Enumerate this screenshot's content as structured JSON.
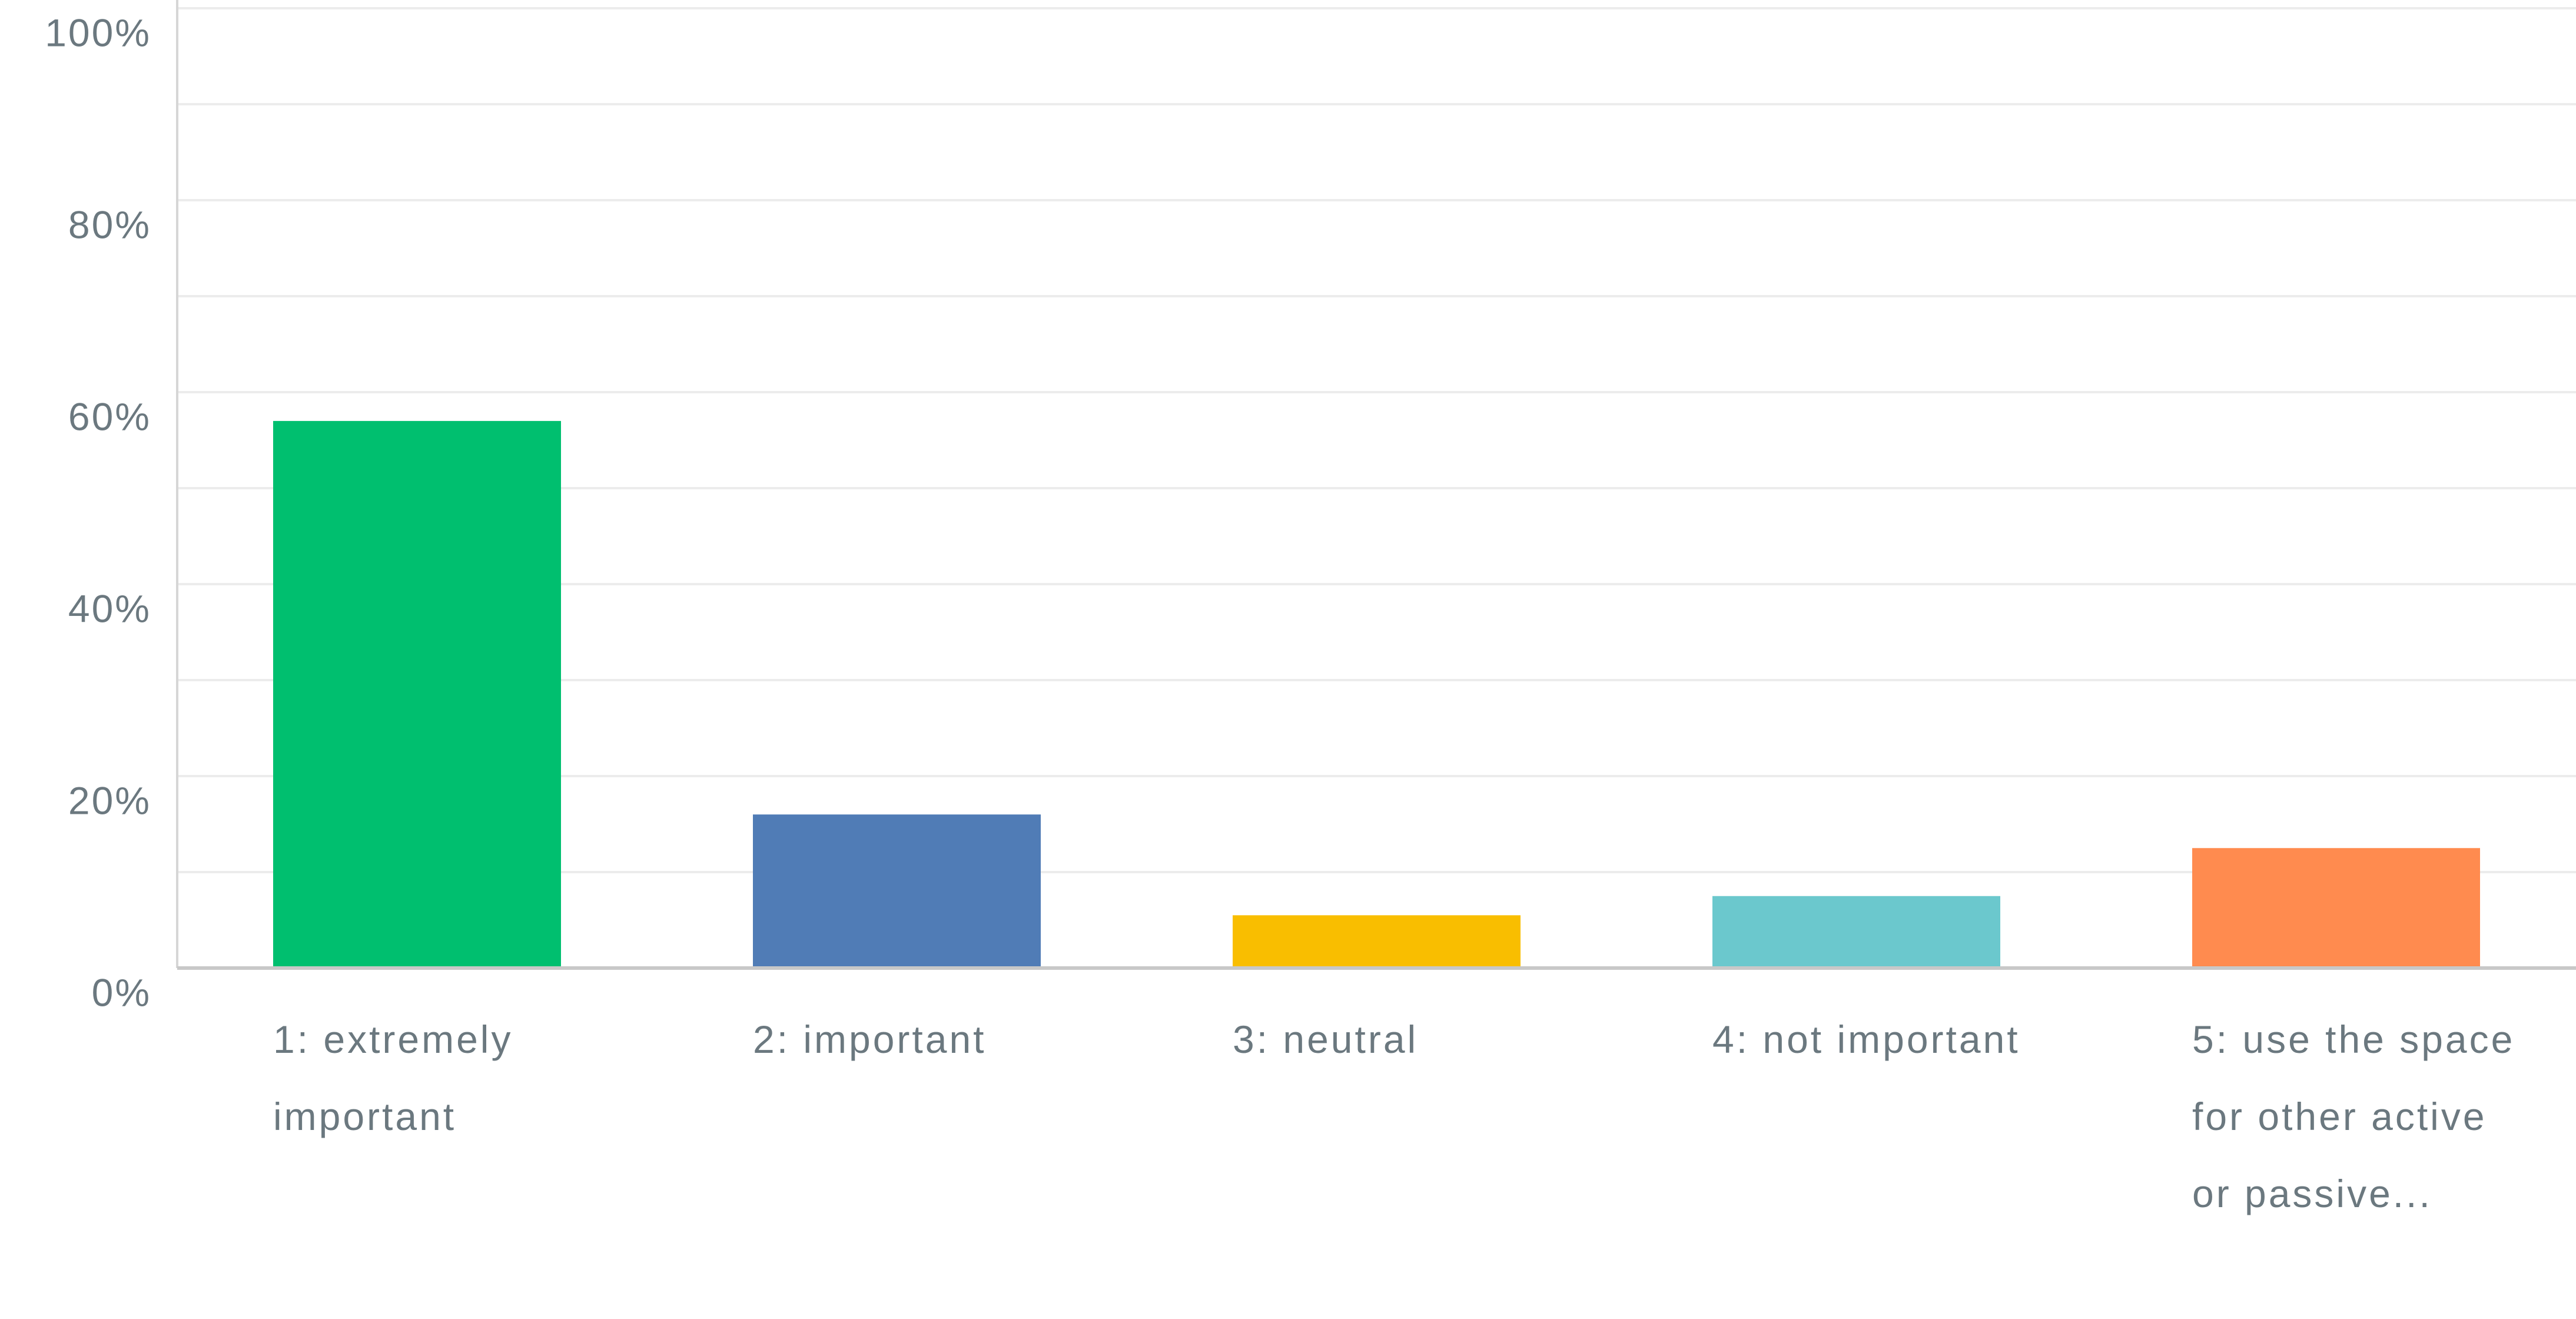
{
  "chart_data": {
    "type": "bar",
    "categories": [
      "1: extremely important",
      "2: important",
      "3: neutral",
      "4: not important",
      "5: use the space for other active or passive..."
    ],
    "values": [
      57,
      16,
      5.5,
      7.5,
      12.5
    ],
    "colors": [
      "#00bf6f",
      "#507cb6",
      "#f9be00",
      "#6bc8cd",
      "#ff8b4f"
    ],
    "ylim": [
      0,
      100
    ],
    "yticks": [
      {
        "value": 0,
        "label": "0%"
      },
      {
        "value": 20,
        "label": "20%"
      },
      {
        "value": 40,
        "label": "40%"
      },
      {
        "value": 60,
        "label": "60%"
      },
      {
        "value": 80,
        "label": "80%"
      },
      {
        "value": 100,
        "label": "100%"
      }
    ],
    "minor_yticks": [
      10,
      30,
      50,
      70,
      90
    ],
    "grid": true
  }
}
